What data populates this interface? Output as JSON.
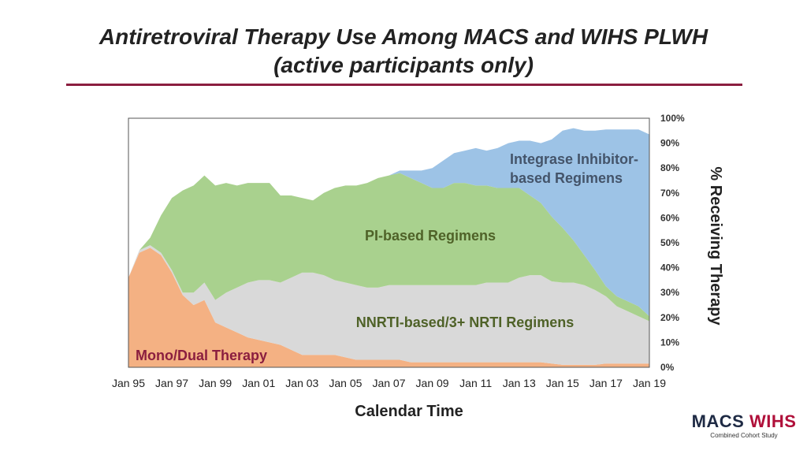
{
  "title_line1": "Antiretroviral Therapy Use Among MACS and WIHS PLWH",
  "title_line2": "(active participants only)",
  "logo": {
    "macs": "MACS",
    "wihs": "WIHS",
    "subtitle": "Combined Cohort Study"
  },
  "colors": {
    "title_rule": "#8b1e3f",
    "mono_dual": "#f4b183",
    "nnrti": "#d9d9d9",
    "pi": "#a9d18e",
    "integrase": "#9dc3e6"
  },
  "chart_data": {
    "type": "area",
    "stacked": true,
    "xlabel": "Calendar Time",
    "ylabel": "% Receiving Therapy",
    "y_axis_side": "right",
    "ylim": [
      0,
      100
    ],
    "yticks": [
      "0%",
      "10%",
      "20%",
      "30%",
      "40%",
      "50%",
      "60%",
      "70%",
      "80%",
      "90%",
      "100%"
    ],
    "x_tick_labels": [
      "Jan 95",
      "Jan 97",
      "Jan 99",
      "Jan 01",
      "Jan 03",
      "Jan 05",
      "Jan 07",
      "Jan 09",
      "Jan 11",
      "Jan 13",
      "Jan 15",
      "Jan 17",
      "Jan 19"
    ],
    "x": [
      1995.0,
      1995.5,
      1996.0,
      1996.5,
      1997.0,
      1997.5,
      1998.0,
      1998.5,
      1999.0,
      1999.5,
      2000.0,
      2000.5,
      2001.0,
      2001.5,
      2002.0,
      2002.5,
      2003.0,
      2003.5,
      2004.0,
      2004.5,
      2005.0,
      2005.5,
      2006.0,
      2006.5,
      2007.0,
      2007.5,
      2008.0,
      2008.5,
      2009.0,
      2009.5,
      2010.0,
      2010.5,
      2011.0,
      2011.5,
      2012.0,
      2012.5,
      2013.0,
      2013.5,
      2014.0,
      2014.5,
      2015.0,
      2015.5,
      2016.0,
      2016.5,
      2017.0,
      2017.5,
      2018.0,
      2018.5,
      2019.0
    ],
    "series": [
      {
        "name": "Mono/Dual Therapy",
        "color": "#f4b183",
        "values": [
          36,
          46,
          48,
          45,
          38,
          29,
          25,
          27,
          18,
          16,
          14,
          12,
          11,
          10,
          9,
          7,
          5,
          5,
          5,
          5,
          4,
          3,
          3,
          3,
          3,
          3,
          2,
          2,
          2,
          2,
          2,
          2,
          2,
          2,
          2,
          2,
          2,
          2,
          2,
          1.5,
          1,
          1,
          1,
          1,
          1.5,
          1.5,
          1.5,
          1.5,
          1.5
        ]
      },
      {
        "name": "NNRTI-based/3+ NRTI Regimens",
        "color": "#d9d9d9",
        "values": [
          0,
          1,
          1,
          1,
          1,
          1,
          5,
          7,
          9,
          14,
          18,
          22,
          24,
          25,
          25,
          29,
          33,
          33,
          32,
          30,
          30,
          30,
          29,
          29,
          30,
          30,
          31,
          31,
          31,
          31,
          31,
          31,
          31,
          32,
          32,
          32,
          34,
          35,
          35,
          33,
          33,
          33,
          32,
          30,
          27,
          23,
          21,
          19,
          17
        ]
      },
      {
        "name": "PI-based Regimens",
        "color": "#a9d18e",
        "values": [
          0,
          0,
          3,
          15,
          29,
          41,
          43,
          43,
          46,
          44,
          41,
          40,
          39,
          39,
          35,
          33,
          30,
          29,
          33,
          37,
          39,
          40,
          42,
          44,
          44,
          45,
          43,
          41,
          39,
          39,
          41,
          41,
          40,
          39,
          38,
          38,
          36,
          32,
          29,
          26,
          22,
          17,
          12,
          8,
          4,
          4,
          4,
          4,
          2
        ]
      },
      {
        "name": "Integrase Inhibitor-based Regimens",
        "color": "#9dc3e6",
        "values": [
          0,
          0,
          0,
          0,
          0,
          0,
          0,
          0,
          0,
          0,
          0,
          0,
          0,
          0,
          0,
          0,
          0,
          0,
          0,
          0,
          0,
          0,
          0,
          0,
          0,
          1,
          3,
          5,
          8,
          11,
          12,
          13,
          15,
          14,
          16,
          18,
          19,
          22,
          24,
          31,
          39,
          45,
          50,
          56,
          63,
          67,
          69,
          71,
          73
        ]
      }
    ],
    "annotations": [
      {
        "text": "Integrase Inhibitor-",
        "color": "#44546a"
      },
      {
        "text": "based Regimens",
        "color": "#44546a"
      },
      {
        "text": "PI-based Regimens",
        "color": "#4f6228"
      },
      {
        "text": "NNRTI-based/3+ NRTI Regimens",
        "color": "#4f6228"
      },
      {
        "text": "Mono/Dual Therapy",
        "color": "#8b1e3f"
      }
    ]
  }
}
